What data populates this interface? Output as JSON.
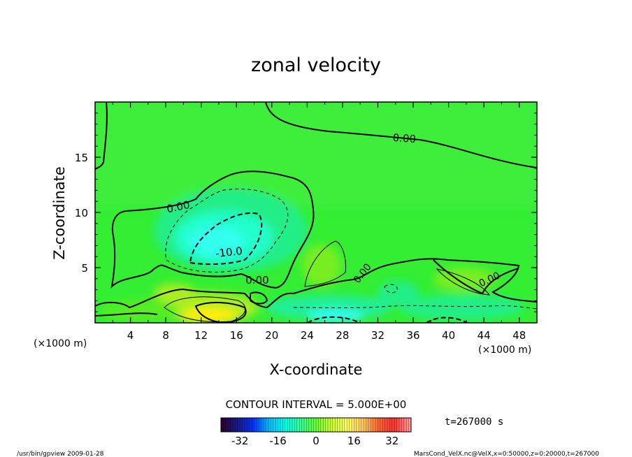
{
  "chart_data": {
    "type": "heatmap",
    "title": "zonal velocity",
    "xlabel": "X-coordinate",
    "ylabel": "Z-coordinate",
    "x_unit": "(×1000 m)",
    "y_unit": "(×1000 m)",
    "xlim": [
      0,
      50
    ],
    "ylim": [
      0,
      20
    ],
    "x_ticks": [
      "4",
      "8",
      "12",
      "16",
      "20",
      "24",
      "28",
      "32",
      "36",
      "40",
      "44",
      "48"
    ],
    "y_ticks": [
      "5",
      "10",
      "15"
    ],
    "contour_labels": [
      "0.00",
      "0.00",
      "-10.0",
      "0.00",
      "0.00",
      "0.00"
    ],
    "contour_interval_label": "CONTOUR INTERVAL = 5.000E+00",
    "colorbar": {
      "range": [
        -40,
        40
      ],
      "ticks": [
        "-32",
        "-16",
        "0",
        "16",
        "32"
      ],
      "colors": [
        "#2b0033",
        "#1a1a8a",
        "#0033ff",
        "#00bfff",
        "#00ffee",
        "#33ff99",
        "#66ff33",
        "#ccff33",
        "#ffff66",
        "#ffcc66",
        "#ff6633",
        "#ff3333",
        "#ff9999"
      ]
    },
    "time_label": "t=267000 s"
  },
  "footer": {
    "left": "/usr/bin/gpview   2009-01-28",
    "right": "MarsCond_VelX.nc@VelX,x=0:50000,z=0:20000,t=267000"
  }
}
